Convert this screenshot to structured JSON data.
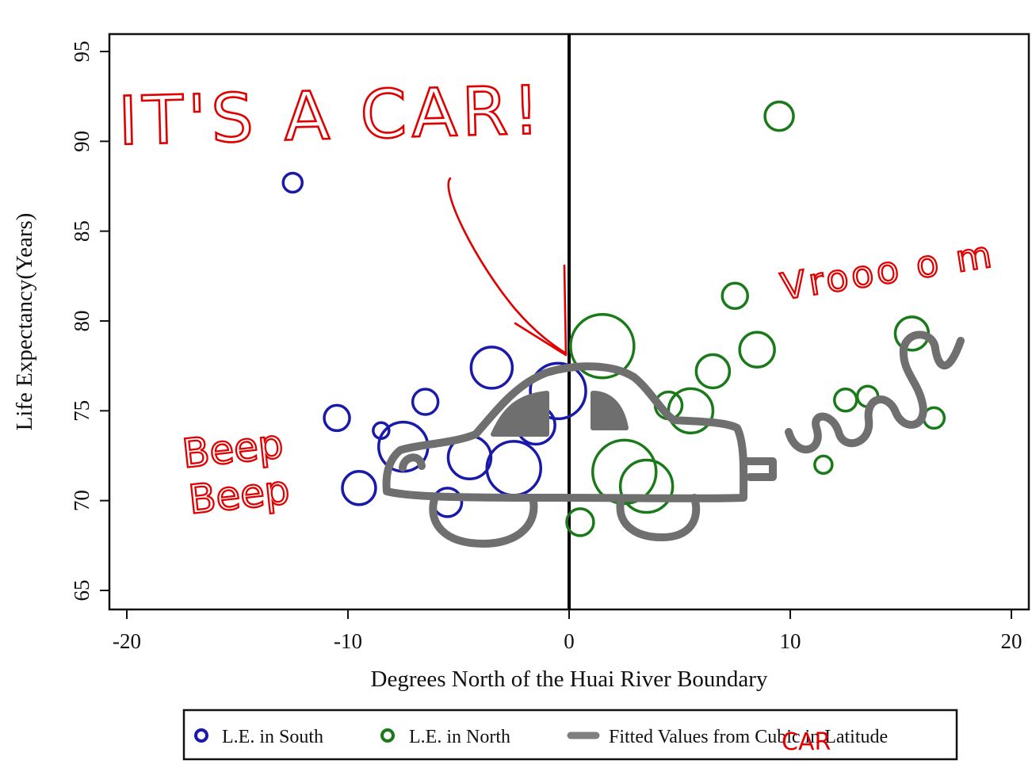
{
  "chart_data": {
    "type": "scatter",
    "xlabel": "Degrees North of the Huai River Boundary",
    "ylabel": "Life Expectancy(Years)",
    "xlim": [
      -20,
      20
    ],
    "ylim": [
      65,
      95
    ],
    "x_ticks": [
      "-20",
      "-10",
      "0",
      "10",
      "20"
    ],
    "y_ticks": [
      "65",
      "70",
      "75",
      "80",
      "85",
      "90",
      "95"
    ],
    "x_tick_values": [
      -20,
      -10,
      0,
      10,
      20
    ],
    "y_tick_values": [
      65,
      70,
      75,
      80,
      85,
      90,
      95
    ],
    "boundary_x": 0,
    "grid": false,
    "legend_position": "bottom",
    "series": [
      {
        "name": "L.E. in South",
        "color": "#1a1aaa",
        "points": [
          {
            "x": -12.5,
            "y": 87.7,
            "size": 12
          },
          {
            "x": -10.5,
            "y": 74.6,
            "size": 16
          },
          {
            "x": -9.5,
            "y": 70.7,
            "size": 21
          },
          {
            "x": -8.5,
            "y": 73.9,
            "size": 10
          },
          {
            "x": -7.5,
            "y": 73.0,
            "size": 31
          },
          {
            "x": -6.5,
            "y": 75.5,
            "size": 16
          },
          {
            "x": -5.5,
            "y": 69.9,
            "size": 18
          },
          {
            "x": -4.5,
            "y": 72.4,
            "size": 27
          },
          {
            "x": -3.5,
            "y": 77.4,
            "size": 26
          },
          {
            "x": -2.5,
            "y": 71.8,
            "size": 34
          },
          {
            "x": -1.5,
            "y": 74.2,
            "size": 24
          },
          {
            "x": -0.5,
            "y": 76.1,
            "size": 35
          }
        ]
      },
      {
        "name": "L.E. in North",
        "color": "#1a7a1a",
        "points": [
          {
            "x": 0.5,
            "y": 68.8,
            "size": 17
          },
          {
            "x": 1.5,
            "y": 78.6,
            "size": 40
          },
          {
            "x": 2.5,
            "y": 71.6,
            "size": 40
          },
          {
            "x": 3.5,
            "y": 70.8,
            "size": 33
          },
          {
            "x": 4.5,
            "y": 75.3,
            "size": 17
          },
          {
            "x": 5.5,
            "y": 75.0,
            "size": 28
          },
          {
            "x": 6.5,
            "y": 77.2,
            "size": 21
          },
          {
            "x": 7.5,
            "y": 81.4,
            "size": 16
          },
          {
            "x": 8.5,
            "y": 78.4,
            "size": 22
          },
          {
            "x": 9.5,
            "y": 91.4,
            "size": 18
          },
          {
            "x": 11.5,
            "y": 72.0,
            "size": 11
          },
          {
            "x": 12.5,
            "y": 75.6,
            "size": 14
          },
          {
            "x": 13.5,
            "y": 75.8,
            "size": 13
          },
          {
            "x": 15.5,
            "y": 79.3,
            "size": 21
          },
          {
            "x": 16.5,
            "y": 74.6,
            "size": 13
          }
        ]
      }
    ],
    "legend": [
      {
        "label": "L.E. in South",
        "marker": "circle",
        "color": "#1a1aaa"
      },
      {
        "label": "L.E. in North",
        "marker": "circle",
        "color": "#1a7a1a"
      },
      {
        "label": "Fitted Values from Cubic in Latitude",
        "marker": "line",
        "color": "#7f7f7f"
      }
    ]
  },
  "annotations": {
    "headline": "IT'S A CAR!",
    "beep_line1": "Beep",
    "beep_line2": "Beep",
    "vroom": "Vrooo o m",
    "legend_overwrite": "CAR",
    "ink_color": "#e00000",
    "car_color": "#6f6f6f"
  }
}
